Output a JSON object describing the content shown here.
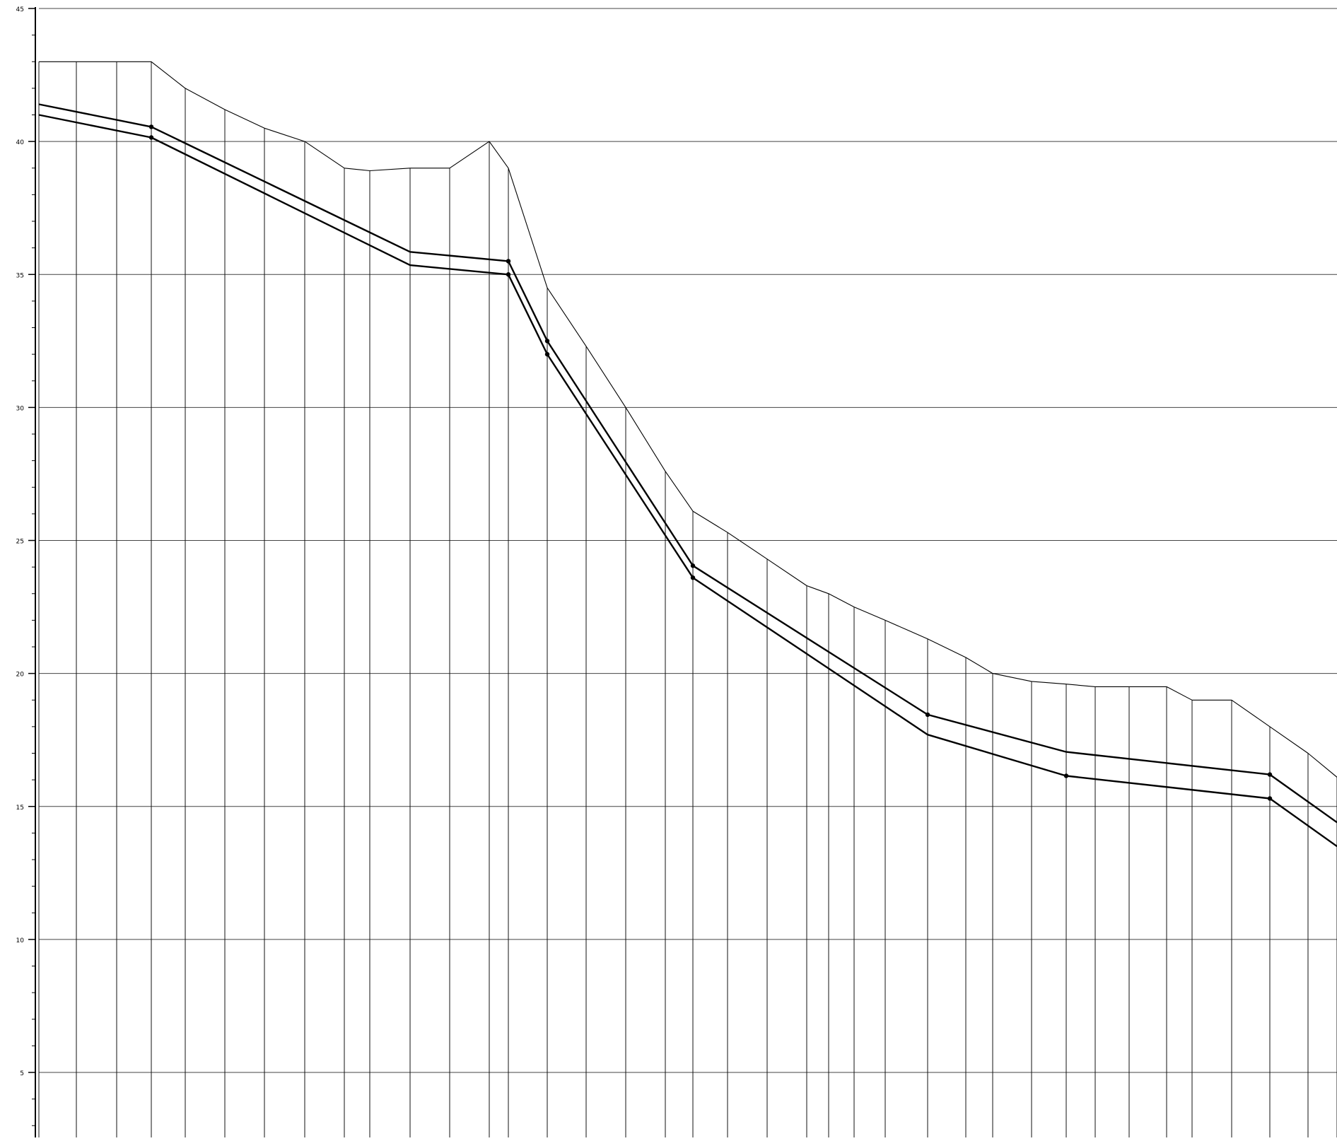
{
  "chart_data": {
    "type": "line",
    "title": "",
    "xlabel": "",
    "ylabel": "",
    "ylim": [
      0,
      45
    ],
    "y_ticks": [
      5,
      10,
      15,
      20,
      25,
      30,
      35,
      40,
      45
    ],
    "y_tick_labels": [
      "5",
      "10",
      "15",
      "20",
      "25",
      "30",
      "35",
      "40",
      "45"
    ],
    "grid": "horizontal lines at major ticks",
    "x_domain": [
      0,
      1891
    ],
    "verticals": [
      55,
      108,
      165,
      214,
      262,
      318,
      374,
      431,
      487,
      523,
      580,
      636,
      692,
      719,
      774,
      829,
      885,
      941,
      980,
      1029,
      1085,
      1141,
      1172,
      1208,
      1252,
      1312,
      1366,
      1404,
      1459,
      1508,
      1549,
      1597,
      1650,
      1686,
      1742,
      1796,
      1850,
      1891
    ],
    "series": [
      {
        "values": [
          {
            "x": 55,
            "y": 43.0
          },
          {
            "x": 214,
            "y": 43.0
          },
          {
            "x": 262,
            "y": 42.0
          },
          {
            "x": 318,
            "y": 41.2
          },
          {
            "x": 374,
            "y": 40.5
          },
          {
            "x": 431,
            "y": 40.0
          },
          {
            "x": 487,
            "y": 39.0
          },
          {
            "x": 523,
            "y": 38.9
          },
          {
            "x": 580,
            "y": 39.0
          },
          {
            "x": 636,
            "y": 39.0
          },
          {
            "x": 692,
            "y": 40.0
          },
          {
            "x": 719,
            "y": 39.0
          },
          {
            "x": 774,
            "y": 34.5
          },
          {
            "x": 829,
            "y": 32.3
          },
          {
            "x": 885,
            "y": 30.0
          },
          {
            "x": 941,
            "y": 27.6
          },
          {
            "x": 980,
            "y": 26.1
          },
          {
            "x": 1029,
            "y": 25.3
          },
          {
            "x": 1085,
            "y": 24.3
          },
          {
            "x": 1141,
            "y": 23.3
          },
          {
            "x": 1172,
            "y": 23.0
          },
          {
            "x": 1208,
            "y": 22.5
          },
          {
            "x": 1252,
            "y": 22.0
          },
          {
            "x": 1312,
            "y": 21.3
          },
          {
            "x": 1366,
            "y": 20.6
          },
          {
            "x": 1404,
            "y": 20.0
          },
          {
            "x": 1459,
            "y": 19.7
          },
          {
            "x": 1508,
            "y": 19.6
          },
          {
            "x": 1549,
            "y": 19.5
          },
          {
            "x": 1650,
            "y": 19.5
          },
          {
            "x": 1686,
            "y": 19.0
          },
          {
            "x": 1742,
            "y": 19.0
          },
          {
            "x": 1796,
            "y": 18.0
          },
          {
            "x": 1850,
            "y": 17.0
          },
          {
            "x": 1891,
            "y": 16.1
          }
        ]
      },
      {
        "values": [
          {
            "x": 55,
            "y": 41.4
          },
          {
            "x": 214,
            "y": 40.55
          },
          {
            "x": 580,
            "y": 35.85
          },
          {
            "x": 719,
            "y": 35.5
          },
          {
            "x": 774,
            "y": 32.5
          },
          {
            "x": 980,
            "y": 24.05
          },
          {
            "x": 1312,
            "y": 18.45
          },
          {
            "x": 1508,
            "y": 17.05
          },
          {
            "x": 1796,
            "y": 16.2
          },
          {
            "x": 1891,
            "y": 14.4
          }
        ]
      },
      {
        "values": [
          {
            "x": 55,
            "y": 41.0
          },
          {
            "x": 214,
            "y": 40.15
          },
          {
            "x": 580,
            "y": 35.35
          },
          {
            "x": 719,
            "y": 35.0
          },
          {
            "x": 774,
            "y": 32.0
          },
          {
            "x": 980,
            "y": 23.6
          },
          {
            "x": 1312,
            "y": 17.7
          },
          {
            "x": 1508,
            "y": 16.15
          },
          {
            "x": 1796,
            "y": 15.3
          },
          {
            "x": 1891,
            "y": 13.5
          }
        ]
      }
    ],
    "markers": [
      {
        "series": 1,
        "x": [
          214,
          719,
          774,
          980,
          1312,
          1796
        ]
      },
      {
        "series": 2,
        "x": [
          214,
          719,
          774,
          980,
          1508,
          1796
        ]
      }
    ]
  }
}
